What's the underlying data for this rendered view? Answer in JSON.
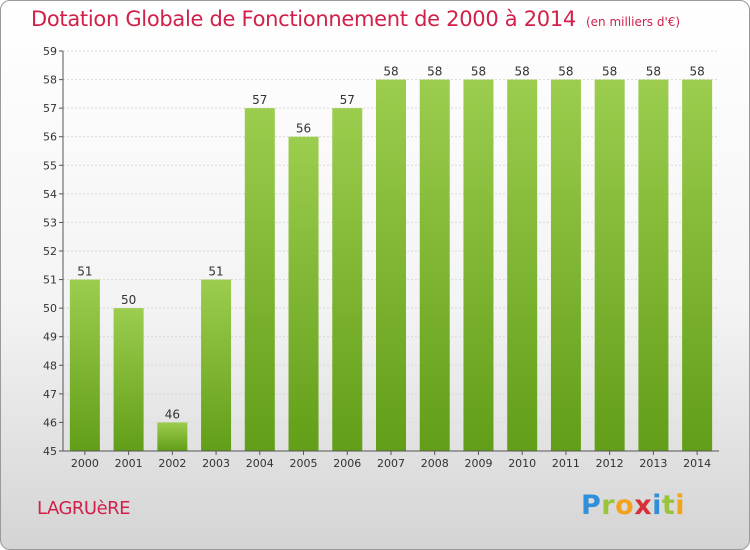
{
  "header": {
    "title": "Dotation Globale de Fonctionnement de 2000 à 2014",
    "unit": "(en milliers d'€)"
  },
  "footer": {
    "commune": "LAGRUèRE",
    "logo": [
      "P",
      "r",
      "o",
      "x",
      "i",
      "t",
      "i"
    ]
  },
  "colors": {
    "title": "#d2204a",
    "bar_top": "#9ccd4e",
    "bar_bottom": "#629e18",
    "grid": "#d8d8d8",
    "axis": "#555555"
  },
  "chart_data": {
    "type": "bar",
    "title": "Dotation Globale de Fonctionnement de 2000 à 2014",
    "xlabel": "",
    "ylabel": "",
    "categories": [
      "2000",
      "2001",
      "2002",
      "2003",
      "2004",
      "2005",
      "2006",
      "2007",
      "2008",
      "2009",
      "2010",
      "2011",
      "2012",
      "2013",
      "2014"
    ],
    "values": [
      51,
      50,
      46,
      51,
      57,
      56,
      57,
      58,
      58,
      58,
      58,
      58,
      58,
      58,
      58
    ],
    "ylim": [
      45,
      59
    ],
    "yticks": [
      45,
      46,
      47,
      48,
      49,
      50,
      51,
      52,
      53,
      54,
      55,
      56,
      57,
      58,
      59
    ],
    "grid": true,
    "data_labels": true
  }
}
